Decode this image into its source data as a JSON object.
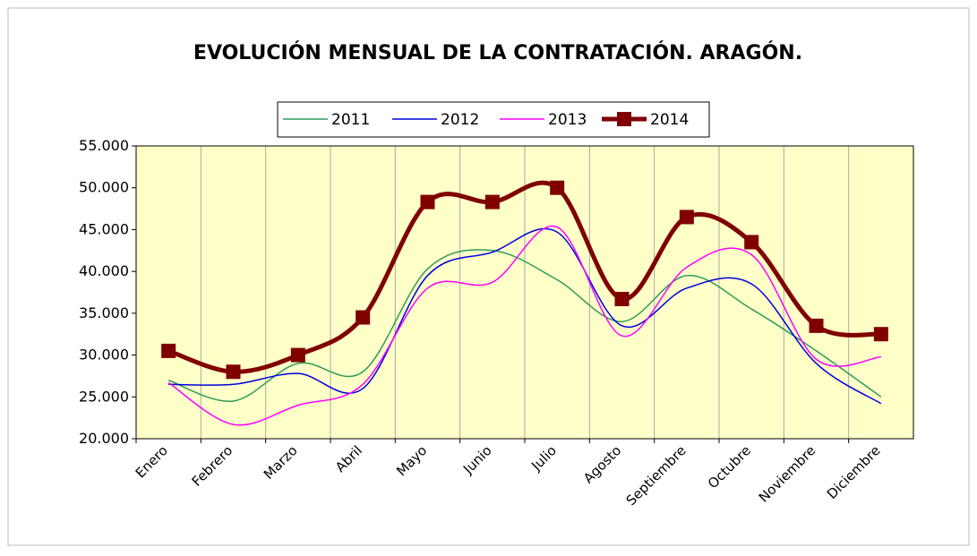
{
  "chart_data": {
    "type": "line",
    "title": "EVOLUCIÓN MENSUAL DE LA CONTRATACIÓN. ARAGÓN.",
    "categories": [
      "Enero",
      "Febrero",
      "Marzo",
      "Abril",
      "Mayo",
      "Junio",
      "Julio",
      "Agosto",
      "Septiembre",
      "Octubre",
      "Noviembre",
      "Diciembre"
    ],
    "series": [
      {
        "name": "2011",
        "color": "#2e9b5a",
        "values": [
          27000,
          24500,
          29000,
          28000,
          40300,
          42500,
          39000,
          34000,
          39500,
          35500,
          30500,
          25000
        ]
      },
      {
        "name": "2012",
        "color": "#0000e0",
        "values": [
          26500,
          26500,
          27800,
          26000,
          39500,
          42300,
          44700,
          33500,
          38000,
          38500,
          29000,
          24200
        ]
      },
      {
        "name": "2013",
        "color": "#ff00ff",
        "values": [
          26700,
          21700,
          24000,
          26500,
          38000,
          38700,
          45300,
          32300,
          40500,
          42000,
          29500,
          29800
        ]
      },
      {
        "name": "2014",
        "color": "#800000",
        "values": [
          30500,
          28000,
          30000,
          34500,
          48300,
          48300,
          50000,
          36700,
          46500,
          43500,
          33500,
          32500
        ]
      }
    ],
    "ylim": [
      20000,
      55000
    ],
    "yticks": [
      {
        "value": 20000,
        "label": "20.000"
      },
      {
        "value": 25000,
        "label": "25.000"
      },
      {
        "value": 30000,
        "label": "30.000"
      },
      {
        "value": 35000,
        "label": "35.000"
      },
      {
        "value": 40000,
        "label": "40.000"
      },
      {
        "value": 45000,
        "label": "45.000"
      },
      {
        "value": 50000,
        "label": "50.000"
      },
      {
        "value": 55000,
        "label": "55.000"
      }
    ],
    "grid": true,
    "plot_background": "#ffffc8"
  }
}
